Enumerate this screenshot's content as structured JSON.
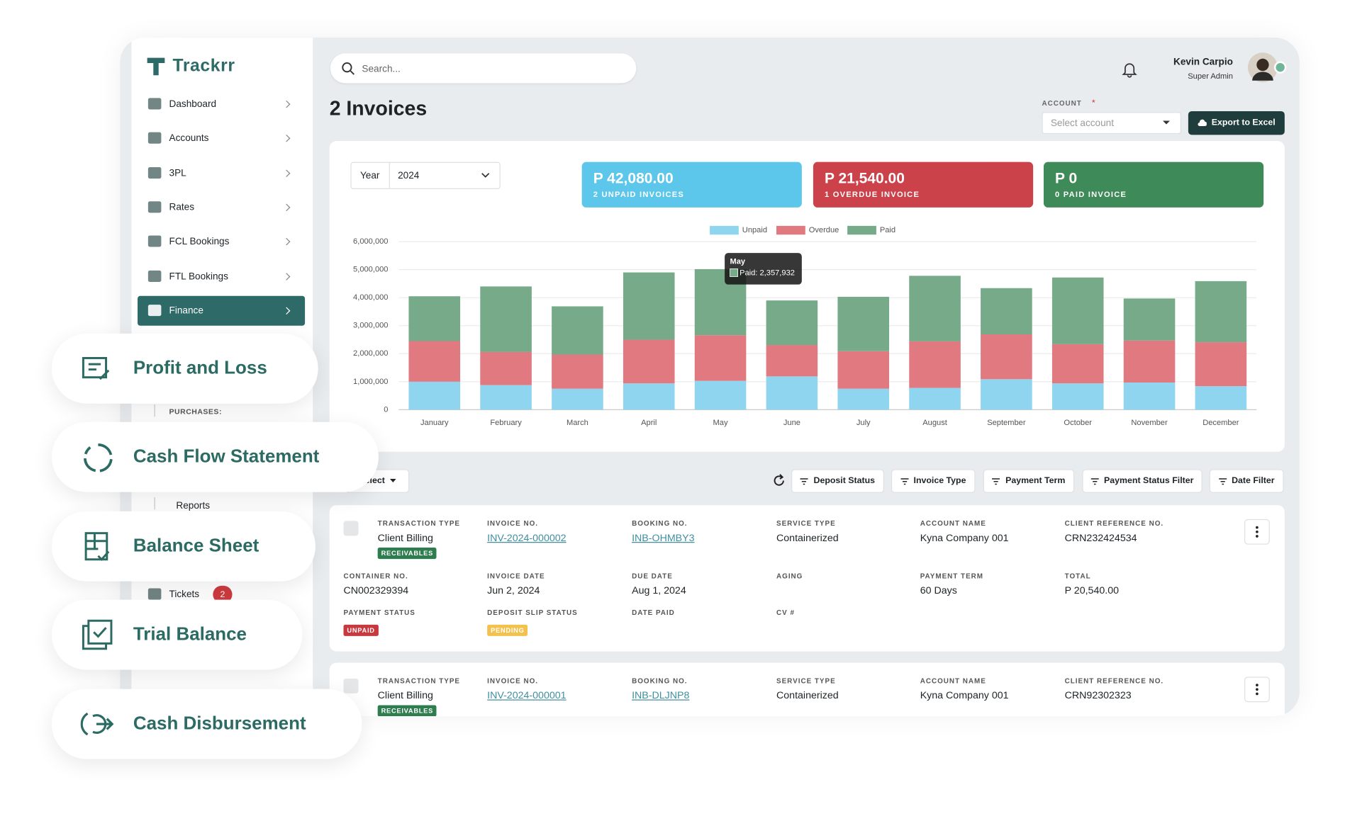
{
  "brand": "Trackrr",
  "search_placeholder": "Search...",
  "user": {
    "name": "Kevin Carpio",
    "role": "Super Admin"
  },
  "sidebar": {
    "items": [
      "Dashboard",
      "Accounts",
      "3PL",
      "Rates",
      "FCL Bookings",
      "FTL Bookings",
      "Finance"
    ],
    "active": "Finance",
    "section": "PURCHASES:",
    "sub_item": "Reports",
    "tickets": {
      "label": "Tickets",
      "count": 2
    }
  },
  "page_title": "2 Invoices",
  "account": {
    "label": "ACCOUNT",
    "required": "*",
    "placeholder": "Select account"
  },
  "export_button": "Export to Excel",
  "year": {
    "label": "Year",
    "value": "2024"
  },
  "summary": [
    {
      "amount": "P 42,080.00",
      "caption": "2 UNPAID INVOICES",
      "color": "#5cc6eb"
    },
    {
      "amount": "P 21,540.00",
      "caption": "1 OVERDUE INVOICE",
      "color": "#cc424a"
    },
    {
      "amount": "P 0",
      "caption": "0 PAID INVOICE",
      "color": "#3e8a58"
    }
  ],
  "chart_data": {
    "type": "stacked_bar",
    "categories": [
      "January",
      "February",
      "March",
      "April",
      "May",
      "June",
      "July",
      "August",
      "September",
      "October",
      "November",
      "December"
    ],
    "series": [
      {
        "name": "Unpaid",
        "color": "#8fd5f0",
        "values": [
          1000000,
          880000,
          750000,
          940000,
          1030000,
          1190000,
          750000,
          780000,
          1090000,
          940000,
          970000,
          840000
        ]
      },
      {
        "name": "Overdue",
        "color": "#e07a80",
        "values": [
          1450000,
          1180000,
          1220000,
          1560000,
          1630000,
          1120000,
          1340000,
          1660000,
          1600000,
          1400000,
          1500000,
          1570000
        ]
      },
      {
        "name": "Paid",
        "color": "#77aa88",
        "values": [
          1600000,
          2340000,
          1720000,
          2400000,
          2357932,
          1590000,
          1940000,
          2340000,
          1650000,
          2380000,
          1500000,
          2180000
        ]
      }
    ],
    "ylim": [
      0,
      6000000
    ],
    "yticks": [
      0,
      {
        "value": 1000000,
        "label": "1,000,000"
      },
      {
        "value": 2000000,
        "label": "2,000,000"
      },
      {
        "value": 3000000,
        "label": "3,000,000"
      },
      {
        "value": 4000000,
        "label": "4,000,000"
      },
      {
        "value": 5000000,
        "label": "5,000,000"
      },
      {
        "value": 6000000,
        "label": "6,000,000"
      }
    ],
    "grid": true,
    "legend": "top",
    "tooltip": {
      "title": "May",
      "text": "Paid: 2,357,932"
    }
  },
  "toolbar": {
    "select": "Select",
    "filters": [
      "Deposit Status",
      "Invoice Type",
      "Payment Term",
      "Payment Status Filter",
      "Date Filter"
    ]
  },
  "invoices": [
    {
      "fields": [
        {
          "label": "TRANSACTION TYPE",
          "value": "Client Billing",
          "tag": "RECEIVABLES",
          "tag_color": "#2e7d4f"
        },
        {
          "label": "INVOICE NO.",
          "value": "INV-2024-000002",
          "link": true
        },
        {
          "label": "BOOKING NO.",
          "value": "INB-OHMBY3",
          "link": true
        },
        {
          "label": "SERVICE TYPE",
          "value": "Containerized"
        },
        {
          "label": "ACCOUNT NAME",
          "value": "Kyna Company 001"
        },
        {
          "label": "CLIENT REFERENCE NO.",
          "value": "CRN232424534"
        },
        {
          "label": "CONTAINER NO.",
          "value": "CN002329394"
        },
        {
          "label": "INVOICE DATE",
          "value": "Jun 2, 2024"
        },
        {
          "label": "DUE DATE",
          "value": "Aug 1, 2024"
        },
        {
          "label": "AGING"
        },
        {
          "label": "PAYMENT TERM",
          "value": "60 Days"
        },
        {
          "label": "TOTAL",
          "value": "P 20,540.00"
        },
        {
          "label": "PAYMENT STATUS",
          "tag": "UNPAID",
          "tag_color": "#c8383f"
        },
        {
          "label": "DEPOSIT SLIP STATUS",
          "tag": "PENDING",
          "tag_color": "#f2c14e"
        },
        {
          "label": "DATE PAID"
        },
        {
          "label": "CV #"
        }
      ]
    },
    {
      "fields": [
        {
          "label": "TRANSACTION TYPE",
          "value": "Client Billing",
          "tag": "RECEIVABLES",
          "tag_color": "#2e7d4f"
        },
        {
          "label": "INVOICE NO.",
          "value": "INV-2024-000001",
          "link": true
        },
        {
          "label": "BOOKING NO.",
          "value": "INB-DLJNP8",
          "link": true
        },
        {
          "label": "SERVICE TYPE",
          "value": "Containerized"
        },
        {
          "label": "ACCOUNT NAME",
          "value": "Kyna Company 001"
        },
        {
          "label": "CLIENT REFERENCE NO.",
          "value": "CRN92302323"
        }
      ]
    }
  ],
  "features": [
    "Profit and Loss",
    "Cash Flow Statement",
    "Balance Sheet",
    "Trial Balance",
    "Cash Disbursement"
  ]
}
